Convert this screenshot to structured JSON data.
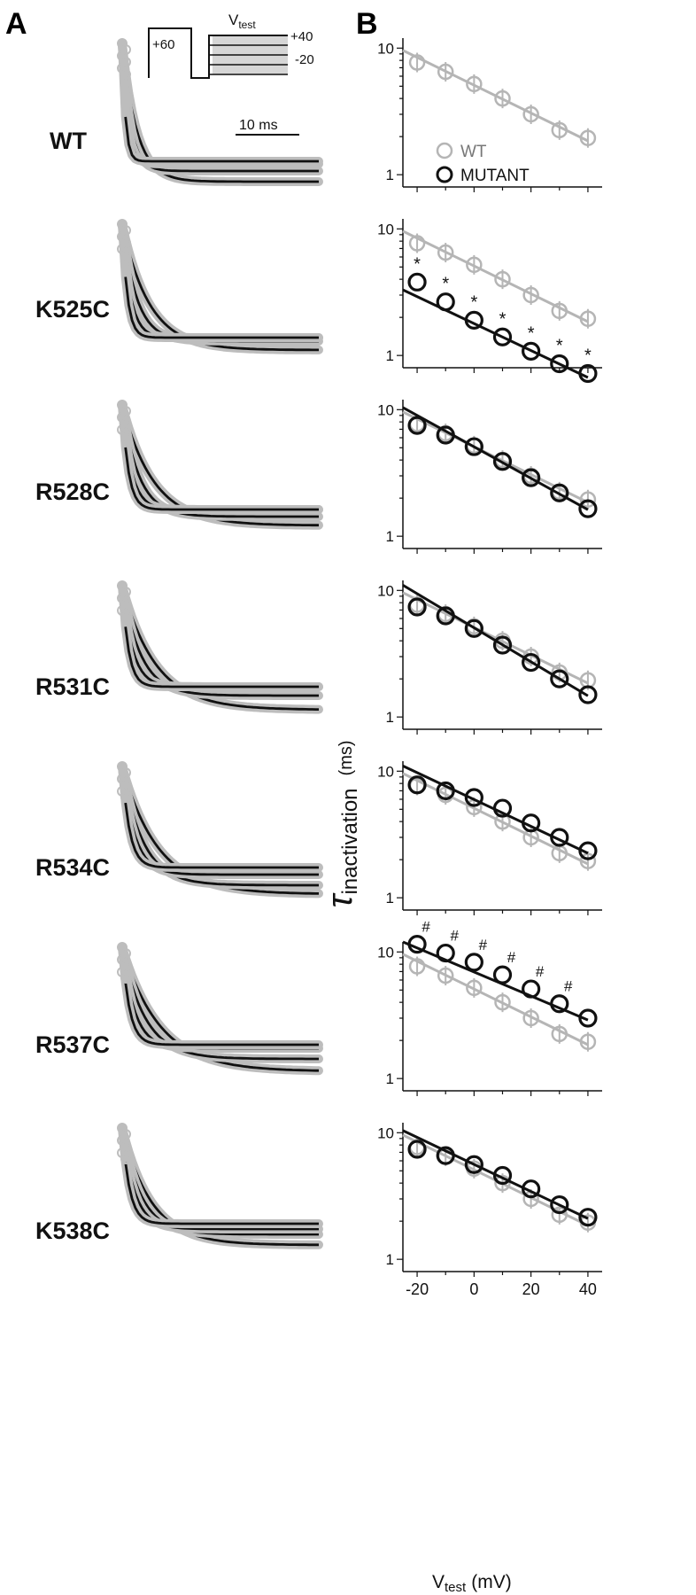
{
  "panel_labels": {
    "a": "A",
    "b": "B"
  },
  "protocol": {
    "prepulse": "+60",
    "vtest_main": "V",
    "vtest_sub": "test",
    "vmax": "+40",
    "vmin": "-20"
  },
  "scalebar_label": "10 ms",
  "legend": {
    "wt": "WT",
    "mutant": "MUTANT"
  },
  "y_axis_label": {
    "symbol": "τ",
    "sub": "inactivation",
    "unit": "(ms)"
  },
  "x_axis_label": {
    "main": "V",
    "sub": "test",
    "unit": "(mV)"
  },
  "colors": {
    "wt": "#b5b5b5",
    "mutant": "#111111",
    "raw": "#bdbdbd"
  },
  "chart_data": {
    "type": "scatter",
    "y_scale": "log",
    "xlim": [
      -25,
      45
    ],
    "ylim": [
      0.8,
      12
    ],
    "x_ticks": [
      "-20",
      "0",
      "20",
      "40"
    ],
    "y_ticks": [
      "1",
      "10"
    ],
    "x": [
      -20,
      -10,
      0,
      10,
      20,
      30,
      40
    ],
    "wt_values": [
      7.7,
      6.5,
      5.2,
      4.0,
      3.0,
      2.25,
      1.95
    ],
    "wt_fit": [
      9.6,
      1.85
    ],
    "panels": [
      {
        "name": "WT",
        "mutant_values": null,
        "mutant_fit": null,
        "markers": []
      },
      {
        "name": "K525C",
        "mutant_values": [
          3.8,
          2.65,
          1.9,
          1.4,
          1.08,
          0.86,
          0.72
        ],
        "mutant_fit": [
          3.3,
          0.67
        ],
        "markers": [
          "*",
          "*",
          "*",
          "*",
          "*",
          "*",
          "*"
        ]
      },
      {
        "name": "R528C",
        "mutant_values": [
          7.5,
          6.3,
          5.1,
          3.9,
          2.9,
          2.2,
          1.65
        ],
        "mutant_fit": [
          10.4,
          1.62
        ],
        "markers": []
      },
      {
        "name": "R531C",
        "mutant_values": [
          7.4,
          6.3,
          5.0,
          3.7,
          2.7,
          2.0,
          1.5
        ],
        "mutant_fit": [
          11.0,
          1.47
        ],
        "markers": []
      },
      {
        "name": "R534C",
        "mutant_values": [
          7.8,
          7.0,
          6.2,
          5.1,
          3.9,
          3.0,
          2.35
        ],
        "mutant_fit": [
          11.0,
          2.25
        ],
        "markers": []
      },
      {
        "name": "R537C",
        "mutant_values": [
          11.5,
          9.8,
          8.3,
          6.6,
          5.1,
          3.9,
          3.0
        ],
        "mutant_fit": [
          12.0,
          2.9
        ],
        "markers": [
          "#",
          "#",
          "#",
          "#",
          "#",
          "#",
          ""
        ]
      },
      {
        "name": "K538C",
        "mutant_values": [
          7.4,
          6.6,
          5.6,
          4.6,
          3.6,
          2.7,
          2.15
        ],
        "mutant_fit": [
          10.4,
          2.1
        ],
        "markers": []
      }
    ]
  }
}
